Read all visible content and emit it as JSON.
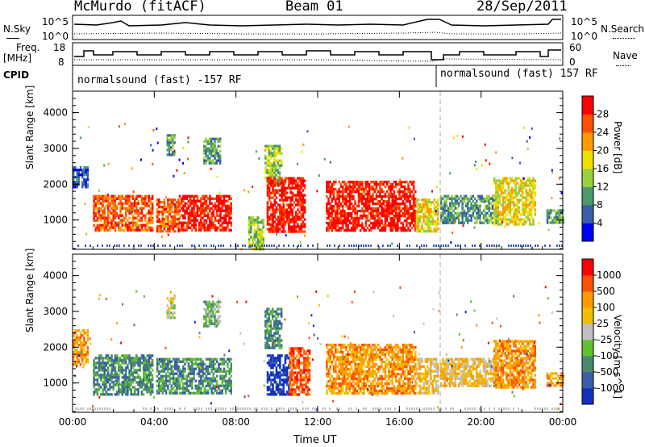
{
  "header": {
    "station": "McMurdo (fitACF)",
    "beam": "Beam 01",
    "date": "28/Sep/2011"
  },
  "top_panels": {
    "nsky_label": "N.Sky",
    "nsky_ticks": [
      "10^5",
      "10^0"
    ],
    "nsearch_label": "N.Search",
    "nsearch_ticks": [
      "10^5",
      "10^0"
    ],
    "freq_label_line1": "Freq.",
    "freq_label_line2": "[MHz]",
    "freq_ticks": [
      "18",
      "8"
    ],
    "nave_label": "Nave",
    "nave_ticks": [
      "60",
      "0"
    ],
    "cpid_label": "CPID",
    "cpid_left": "normalsound (fast) -157 RF",
    "cpid_right": "normalsound (fast) 157 RF"
  },
  "chart_data": [
    {
      "type": "heatmap",
      "quantity": "Power",
      "ylabel": "Slant Range [km]",
      "xlabel": "Time UT",
      "x_ticks": [
        "00:00",
        "04:00",
        "08:00",
        "12:00",
        "16:00",
        "20:00",
        "00:00"
      ],
      "y_ticks": [
        1000,
        2000,
        3000,
        4000
      ],
      "ylim": [
        180,
        4600
      ],
      "xlim_hours": [
        0,
        24
      ],
      "colorbar_label": "Power [dB]",
      "colorbar_ticks": [
        4,
        8,
        12,
        16,
        20,
        24,
        28
      ],
      "colors": [
        "#0000ff",
        "#3a5fa8",
        "#4a9a6a",
        "#9ad040",
        "#f0e000",
        "#ff9a00",
        "#ff5000",
        "#ff0000"
      ],
      "echo_regions": [
        {
          "t0": 0.0,
          "t1": 0.7,
          "r0": 1900,
          "r1": 2500,
          "level": 1
        },
        {
          "t0": 1.0,
          "t1": 3.9,
          "r0": 700,
          "r1": 1700,
          "level": 6
        },
        {
          "t0": 4.1,
          "t1": 5.2,
          "r0": 700,
          "r1": 1600,
          "level": 6
        },
        {
          "t0": 4.6,
          "t1": 5.0,
          "r0": 2800,
          "r1": 3400,
          "level": 2
        },
        {
          "t0": 5.2,
          "t1": 7.8,
          "r0": 700,
          "r1": 1700,
          "level": 7
        },
        {
          "t0": 6.4,
          "t1": 7.2,
          "r0": 2600,
          "r1": 3300,
          "level": 2
        },
        {
          "t0": 8.6,
          "t1": 9.3,
          "r0": 180,
          "r1": 1100,
          "level": 3
        },
        {
          "t0": 9.4,
          "t1": 10.2,
          "r0": 2000,
          "r1": 3100,
          "level": 3
        },
        {
          "t0": 9.5,
          "t1": 11.4,
          "r0": 700,
          "r1": 2200,
          "level": 7
        },
        {
          "t0": 12.4,
          "t1": 16.8,
          "r0": 700,
          "r1": 2100,
          "level": 7
        },
        {
          "t0": 16.8,
          "t1": 17.9,
          "r0": 700,
          "r1": 1600,
          "level": 4
        },
        {
          "t0": 18.0,
          "t1": 20.8,
          "r0": 900,
          "r1": 1700,
          "level": 2
        },
        {
          "t0": 20.6,
          "t1": 22.6,
          "r0": 900,
          "r1": 2200,
          "level": 4
        },
        {
          "t0": 23.2,
          "t1": 24.0,
          "r0": 900,
          "r1": 1300,
          "level": 2
        }
      ]
    },
    {
      "type": "heatmap",
      "quantity": "Velocity",
      "ylabel": "Slant Range [km]",
      "xlabel": "Time UT",
      "x_ticks": [
        "00:00",
        "04:00",
        "08:00",
        "12:00",
        "16:00",
        "20:00",
        "00:00"
      ],
      "y_ticks": [
        1000,
        2000,
        3000,
        4000
      ],
      "ylim": [
        180,
        4600
      ],
      "xlim_hours": [
        0,
        24
      ],
      "colorbar_label": "Velocity [m s^-1]",
      "colorbar_ticks": [
        1000,
        500,
        100,
        25,
        -25,
        -100,
        -500,
        -1000
      ],
      "colors": [
        "#1030c0",
        "#3a5fa8",
        "#4a8a6a",
        "#60c030",
        "#c0c0c0",
        "#f0c000",
        "#ff9a00",
        "#ff5000",
        "#ff0000"
      ],
      "echo_regions": [
        {
          "t0": 0.0,
          "t1": 0.7,
          "r0": 1500,
          "r1": 2500,
          "level": 6
        },
        {
          "t0": 1.0,
          "t1": 3.9,
          "r0": 700,
          "r1": 1800,
          "level": 2
        },
        {
          "t0": 4.1,
          "t1": 5.2,
          "r0": 700,
          "r1": 1700,
          "level": 2
        },
        {
          "t0": 4.6,
          "t1": 5.0,
          "r0": 2800,
          "r1": 3400,
          "level": 4
        },
        {
          "t0": 5.2,
          "t1": 7.8,
          "r0": 700,
          "r1": 1700,
          "level": 2
        },
        {
          "t0": 6.4,
          "t1": 7.2,
          "r0": 2600,
          "r1": 3300,
          "level": 3
        },
        {
          "t0": 9.4,
          "t1": 10.2,
          "r0": 2000,
          "r1": 3100,
          "level": 2
        },
        {
          "t0": 9.5,
          "t1": 10.6,
          "r0": 700,
          "r1": 1800,
          "level": 0
        },
        {
          "t0": 10.6,
          "t1": 11.6,
          "r0": 700,
          "r1": 2000,
          "level": 7
        },
        {
          "t0": 12.4,
          "t1": 16.8,
          "r0": 700,
          "r1": 2100,
          "level": 6
        },
        {
          "t0": 16.8,
          "t1": 17.9,
          "r0": 700,
          "r1": 1700,
          "level": 5
        },
        {
          "t0": 18.0,
          "t1": 20.8,
          "r0": 900,
          "r1": 1700,
          "level": 5
        },
        {
          "t0": 20.6,
          "t1": 22.6,
          "r0": 900,
          "r1": 2200,
          "level": 6
        },
        {
          "t0": 23.2,
          "t1": 24.0,
          "r0": 900,
          "r1": 1300,
          "level": 6
        }
      ]
    }
  ]
}
